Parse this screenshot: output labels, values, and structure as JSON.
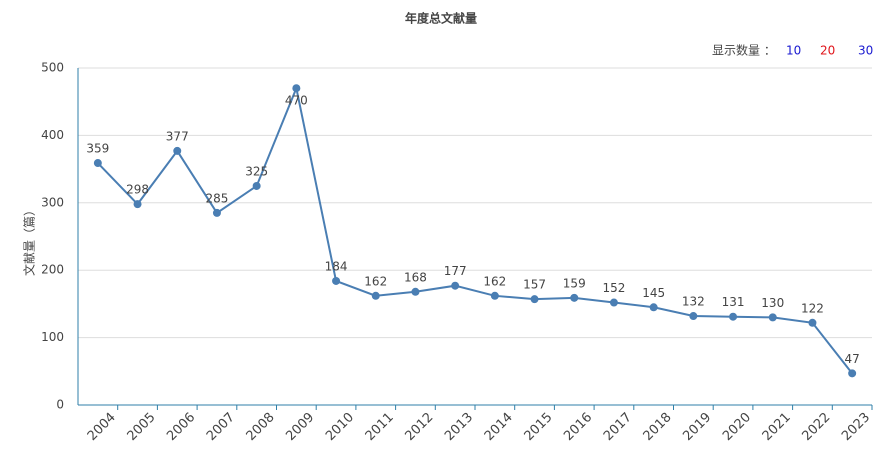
{
  "chart_data": {
    "type": "line",
    "title": "年度总文献量",
    "y_label": "文献量（篇）",
    "categories": [
      "2004",
      "2005",
      "2006",
      "2007",
      "2008",
      "2009",
      "2010",
      "2011",
      "2012",
      "2013",
      "2014",
      "2015",
      "2016",
      "2017",
      "2018",
      "2019",
      "2020",
      "2021",
      "2022",
      "2023"
    ],
    "series": [
      {
        "name": "年度总文献量",
        "color": "#4a7eb3",
        "values": [
          359,
          298,
          377,
          285,
          325,
          470,
          184,
          162,
          168,
          177,
          162,
          157,
          159,
          152,
          145,
          132,
          131,
          130,
          122,
          47
        ]
      }
    ],
    "ylim": [
      0,
      500
    ],
    "yticks": [
      0,
      100,
      200,
      300,
      400,
      500
    ],
    "grid": true
  },
  "toolbar": {
    "label": "显示数量 ：",
    "options": [
      "10",
      "20",
      "30"
    ]
  }
}
